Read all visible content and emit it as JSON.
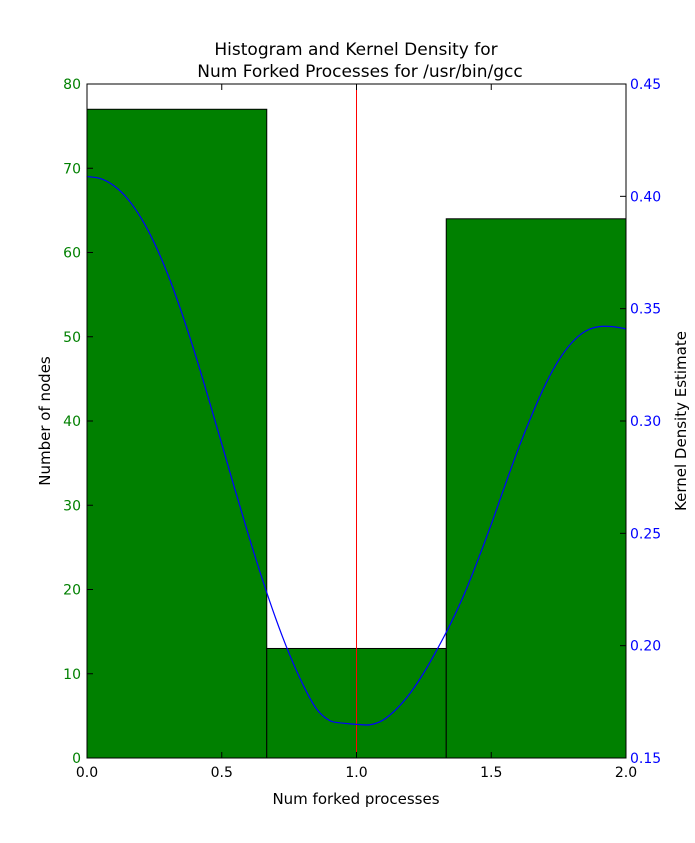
{
  "chart_data": {
    "type": "bar",
    "title": [
      "Histogram and Kernel Density for",
      "Num Forked Processes for /usr/bin/gcc"
    ],
    "xlabel": "Num forked processes",
    "ylabel": "Number of nodes",
    "y2label": "Kernel Density Estimate",
    "xlim": [
      0.0,
      2.0
    ],
    "ylim": [
      0,
      80
    ],
    "y2lim": [
      0.15,
      0.45
    ],
    "x_ticks": [
      "0.0",
      "0.5",
      "1.0",
      "1.5",
      "2.0"
    ],
    "y_ticks": [
      "0",
      "10",
      "20",
      "30",
      "40",
      "50",
      "60",
      "70",
      "80"
    ],
    "y2_ticks": [
      "0.15",
      "0.20",
      "0.25",
      "0.30",
      "0.35",
      "0.40",
      "0.45"
    ],
    "histogram": {
      "bins": [
        [
          0.0,
          0.667
        ],
        [
          0.667,
          1.333
        ],
        [
          1.333,
          2.0
        ]
      ],
      "values": [
        77,
        13,
        64
      ],
      "color": "#008000"
    },
    "mean_line": {
      "x": 1.0,
      "color": "#ff0000"
    },
    "kde": {
      "color": "#0000ff",
      "x": [
        0.0,
        0.05,
        0.1,
        0.15,
        0.2,
        0.25,
        0.3,
        0.35,
        0.4,
        0.45,
        0.5,
        0.55,
        0.6,
        0.65,
        0.7,
        0.75,
        0.8,
        0.85,
        0.9,
        0.95,
        1.0,
        1.05,
        1.1,
        1.15,
        1.2,
        1.25,
        1.3,
        1.35,
        1.4,
        1.45,
        1.5,
        1.55,
        1.6,
        1.65,
        1.7,
        1.75,
        1.8,
        1.85,
        1.9,
        1.95,
        2.0
      ],
      "y": [
        0.4088,
        0.4079,
        0.4047,
        0.399,
        0.3905,
        0.3792,
        0.3652,
        0.3487,
        0.3303,
        0.3104,
        0.2898,
        0.2691,
        0.2489,
        0.2298,
        0.2122,
        0.1965,
        0.183,
        0.1721,
        0.1667,
        0.1655,
        0.165,
        0.1648,
        0.167,
        0.172,
        0.179,
        0.188,
        0.1985,
        0.21,
        0.223,
        0.238,
        0.254,
        0.271,
        0.2875,
        0.3025,
        0.316,
        0.327,
        0.335,
        0.34,
        0.342,
        0.342,
        0.341
      ]
    }
  }
}
